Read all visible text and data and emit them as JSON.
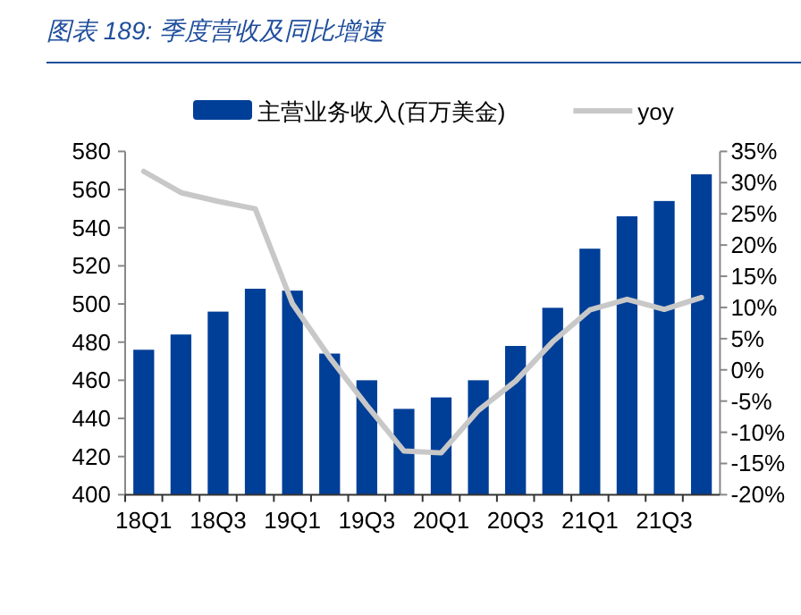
{
  "chart_data": {
    "type": "bar",
    "title": "图表 189: 季度营收及同比增速",
    "categories": [
      "18Q1",
      null,
      "18Q3",
      null,
      "19Q1",
      null,
      "19Q3",
      null,
      "20Q1",
      null,
      "20Q3",
      null,
      "21Q1",
      null,
      "21Q3",
      null
    ],
    "series": [
      {
        "name": "主营业务收入(百万美金)",
        "color": "#003f98",
        "values": [
          476,
          484,
          496,
          508,
          507,
          474,
          460,
          445,
          451,
          460,
          478,
          498,
          529,
          546,
          554,
          568
        ]
      },
      {
        "name": "yoy",
        "type": "line",
        "axis": "y2",
        "color": "#c8c8c8",
        "values": [
          31.8,
          28.4,
          27,
          25.8,
          10.6,
          2,
          -5.7,
          -13,
          -13.3,
          -6.5,
          -1.8,
          4.5,
          9.6,
          11.3,
          9.7,
          11.6
        ]
      }
    ],
    "ylim": [
      400,
      580
    ],
    "yticks": [
      400,
      420,
      440,
      460,
      480,
      500,
      520,
      540,
      560,
      580
    ],
    "y2lim": [
      -20,
      35
    ],
    "y2ticks": [
      {
        "value": -20,
        "label": "-20%"
      },
      {
        "value": -15,
        "label": "-15%"
      },
      {
        "value": -10,
        "label": "-10%"
      },
      {
        "value": -5,
        "label": "-5%"
      },
      {
        "value": 0,
        "label": "0%"
      },
      {
        "value": 5,
        "label": "5%"
      },
      {
        "value": 10,
        "label": "10%"
      },
      {
        "value": 15,
        "label": "15%"
      },
      {
        "value": 20,
        "label": "20%"
      },
      {
        "value": 25,
        "label": "25%"
      },
      {
        "value": 30,
        "label": "30%"
      },
      {
        "value": 35,
        "label": "35%"
      }
    ],
    "legend": "top",
    "grid": false
  }
}
